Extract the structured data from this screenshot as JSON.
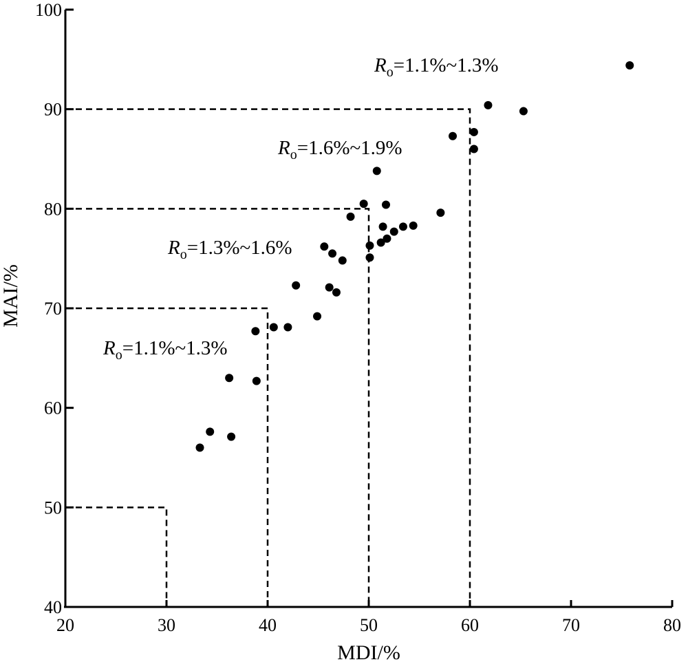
{
  "chart_data": {
    "type": "scatter",
    "xlabel": "MDI/%",
    "ylabel": "MAI/%",
    "xlim": [
      20,
      80
    ],
    "ylim": [
      40,
      100
    ],
    "xticks": [
      "20",
      "30",
      "40",
      "50",
      "60",
      "70",
      "80"
    ],
    "yticks": [
      "40",
      "50",
      "60",
      "70",
      "80",
      "90",
      "100"
    ],
    "grid": false,
    "points": [
      {
        "x": 33.3,
        "y": 56.0
      },
      {
        "x": 34.3,
        "y": 57.6
      },
      {
        "x": 36.2,
        "y": 63.0
      },
      {
        "x": 36.4,
        "y": 57.1
      },
      {
        "x": 38.8,
        "y": 67.7
      },
      {
        "x": 38.9,
        "y": 62.7
      },
      {
        "x": 40.6,
        "y": 68.1
      },
      {
        "x": 42.0,
        "y": 68.1
      },
      {
        "x": 42.8,
        "y": 72.3
      },
      {
        "x": 44.9,
        "y": 69.2
      },
      {
        "x": 45.6,
        "y": 76.2
      },
      {
        "x": 46.1,
        "y": 72.1
      },
      {
        "x": 46.4,
        "y": 75.5
      },
      {
        "x": 46.8,
        "y": 71.6
      },
      {
        "x": 47.4,
        "y": 74.8
      },
      {
        "x": 48.2,
        "y": 79.2
      },
      {
        "x": 49.5,
        "y": 80.5
      },
      {
        "x": 50.1,
        "y": 75.1
      },
      {
        "x": 50.1,
        "y": 76.3
      },
      {
        "x": 50.8,
        "y": 83.8
      },
      {
        "x": 51.2,
        "y": 76.6
      },
      {
        "x": 51.4,
        "y": 78.2
      },
      {
        "x": 51.7,
        "y": 80.4
      },
      {
        "x": 51.8,
        "y": 77.0
      },
      {
        "x": 52.5,
        "y": 77.7
      },
      {
        "x": 53.4,
        "y": 78.2
      },
      {
        "x": 54.4,
        "y": 78.3
      },
      {
        "x": 57.1,
        "y": 79.6
      },
      {
        "x": 58.3,
        "y": 87.3
      },
      {
        "x": 60.4,
        "y": 87.7
      },
      {
        "x": 60.4,
        "y": 86.0
      },
      {
        "x": 61.8,
        "y": 90.4
      },
      {
        "x": 65.3,
        "y": 89.8
      },
      {
        "x": 75.8,
        "y": 94.4
      }
    ],
    "regions": [
      {
        "x": 30,
        "y": 50
      },
      {
        "x": 40,
        "y": 70
      },
      {
        "x": 50,
        "y": 80
      },
      {
        "x": 60,
        "y": 90
      }
    ],
    "annotations": [
      {
        "symbol": "R",
        "subscript": "o",
        "range": "=1.1%~1.3%"
      },
      {
        "symbol": "R",
        "subscript": "o",
        "range": "=1.3%~1.6%"
      },
      {
        "symbol": "R",
        "subscript": "o",
        "range": "=1.6%~1.9%"
      },
      {
        "symbol": "R",
        "subscript": "o",
        "range": "=1.1%~1.3%"
      }
    ]
  }
}
